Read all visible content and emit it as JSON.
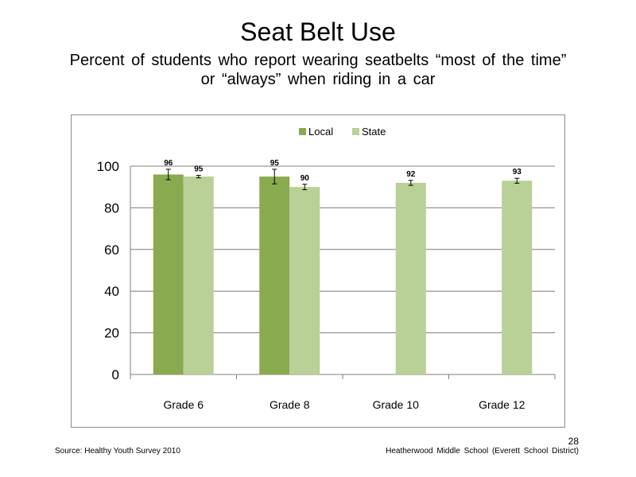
{
  "slide": {
    "title": "Seat Belt Use",
    "subtitle_line1": "Percent of students who report wearing seatbelts “most of the time”",
    "subtitle_line2": "or “always” when riding in a car",
    "source": "Source: Healthy Youth Survey 2010",
    "school": "Heatherwood Middle School (Everett School District)",
    "page_number": "28"
  },
  "chart_data": {
    "type": "bar",
    "title": "",
    "xlabel": "",
    "ylabel": "",
    "categories": [
      "Grade 6",
      "Grade 8",
      "Grade 10",
      "Grade 12"
    ],
    "series": [
      {
        "name": "Local",
        "color": "#8aaa50",
        "values": [
          96,
          95,
          null,
          null
        ],
        "labels": [
          "96",
          "95",
          "",
          ""
        ],
        "error": [
          2.5,
          3.5,
          null,
          null
        ]
      },
      {
        "name": "State",
        "color": "#b9d096",
        "values": [
          95,
          90,
          92,
          93
        ],
        "labels": [
          "95",
          "90",
          "92",
          "93"
        ],
        "error": [
          0.6,
          1.3,
          1.2,
          1.2
        ]
      }
    ],
    "ylim": [
      0,
      100
    ],
    "yticks": [
      0,
      20,
      40,
      60,
      80,
      100
    ],
    "grid": true,
    "legend_position": "top-center"
  }
}
